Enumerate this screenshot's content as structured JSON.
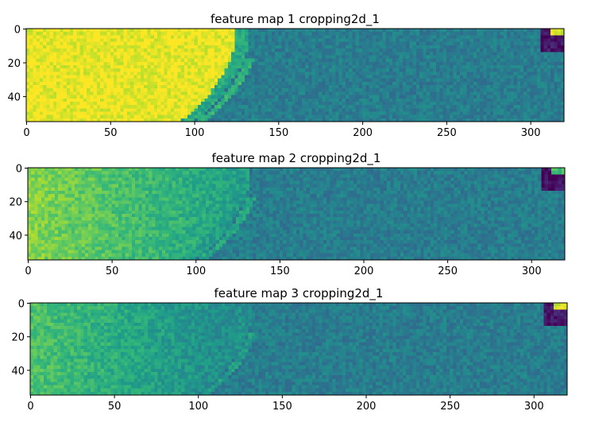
{
  "chart_data": [
    {
      "type": "heatmap",
      "title": "feature map 1 cropping2d_1",
      "x_ticks": [
        0,
        50,
        100,
        150,
        200,
        250,
        300
      ],
      "y_ticks": [
        0,
        20,
        40
      ],
      "xlim": [
        0,
        320
      ],
      "ylim": [
        55,
        0
      ],
      "colormap": "viridis",
      "variant": 0
    },
    {
      "type": "heatmap",
      "title": "feature map 2 cropping2d_1",
      "x_ticks": [
        0,
        50,
        100,
        150,
        200,
        250,
        300
      ],
      "y_ticks": [
        0,
        20,
        40
      ],
      "xlim": [
        0,
        320
      ],
      "ylim": [
        55,
        0
      ],
      "colormap": "viridis",
      "variant": 1
    },
    {
      "type": "heatmap",
      "title": "feature map 3 cropping2d_1",
      "x_ticks": [
        0,
        50,
        100,
        150,
        200,
        250,
        300
      ],
      "y_ticks": [
        0,
        20,
        40
      ],
      "xlim": [
        0,
        320
      ],
      "ylim": [
        55,
        0
      ],
      "colormap": "viridis",
      "variant": 2
    }
  ]
}
